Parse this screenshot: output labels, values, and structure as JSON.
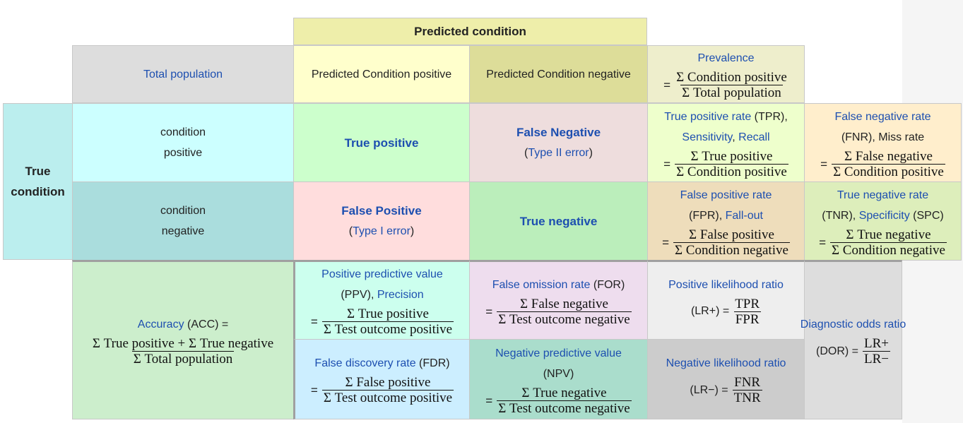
{
  "header": {
    "predicted_condition": "Predicted condition",
    "total_population": "Total population",
    "predicted_positive": "Predicted Condition positive",
    "predicted_negative": "Predicted Condition negative",
    "prevalence": {
      "label": "Prevalence",
      "eq": "=",
      "num": "Σ Condition positive",
      "den": "Σ Total population"
    }
  },
  "true_condition": {
    "line1": "True",
    "line2": "condition"
  },
  "rows": {
    "condition_positive": {
      "line1": "condition",
      "line2": "positive"
    },
    "condition_negative": {
      "line1": "condition",
      "line2": "negative"
    }
  },
  "cells": {
    "true_positive": "True positive",
    "false_negative": {
      "title": "False Negative",
      "open": "(",
      "link": "Type II error",
      "close": ")"
    },
    "false_positive": {
      "title": "False Positive",
      "open": "(",
      "link": "Type I error",
      "close": ")"
    },
    "true_negative": "True negative"
  },
  "metrics": {
    "tpr": {
      "name": "True positive rate",
      "abbr": " (TPR),",
      "alt1": "Sensitivity",
      "comma": ",",
      "alt2": " Recall",
      "eq": "=",
      "num": "Σ True positive",
      "den": "Σ Condition positive"
    },
    "fnr": {
      "name": "False negative rate",
      "abbr": "(FNR), Miss rate",
      "eq": "=",
      "num": "Σ False negative",
      "den": "Σ Condition positive"
    },
    "fpr": {
      "name": "False positive rate",
      "abbr": "(FPR), ",
      "alt": "Fall-out",
      "eq": "=",
      "num": "Σ False positive",
      "den": "Σ Condition negative"
    },
    "tnr": {
      "name": "True negative rate",
      "abbr": "(TNR), ",
      "alt": "Specificity",
      "abbr2": " (SPC)",
      "eq": "=",
      "num": "Σ True negative",
      "den": "Σ Condition negative"
    },
    "accuracy": {
      "name": "Accuracy",
      "abbr": " (ACC) =",
      "num": "Σ True positive + Σ True negative",
      "den": "Σ Total population"
    },
    "ppv": {
      "name": "Positive predictive value",
      "abbr": "(PPV), ",
      "alt": "Precision",
      "eq": "=",
      "num": "Σ True positive",
      "den": "Σ Test outcome positive"
    },
    "for": {
      "name": "False omission rate",
      "abbr": " (FOR)",
      "eq": "=",
      "num": "Σ False negative",
      "den": "Σ Test outcome negative"
    },
    "fdr": {
      "name": "False discovery rate",
      "abbr": " (FDR)",
      "eq": "=",
      "num": "Σ False positive",
      "den": "Σ Test outcome positive"
    },
    "npv": {
      "name": "Negative predictive value",
      "abbr": "(NPV)",
      "eq": "=",
      "num": "Σ True negative",
      "den": "Σ Test outcome negative"
    },
    "lr_pos": {
      "name": "Positive likelihood ratio",
      "label": "(LR+) =",
      "num": "TPR",
      "den": "FPR"
    },
    "lr_neg": {
      "name": "Negative likelihood ratio",
      "label": "(LR−) =",
      "num": "FNR",
      "den": "TNR"
    },
    "dor": {
      "name": "Diagnostic odds ratio",
      "label": "(DOR) =",
      "num": "LR+",
      "den": "LR−"
    }
  },
  "colors": {
    "header_pc": "#eeeeaa",
    "total_pop": "#dddddd",
    "pred_pos": "#ffffcc",
    "pred_neg": "#dddd99",
    "prevalence": "#eeeecc",
    "true_cond": "#bbeeee",
    "cond_pos": "#ccffff",
    "cond_neg": "#aadddd",
    "tp": "#ccffcc",
    "fn": "#eedddd",
    "fp": "#ffdddd",
    "tn": "#bbeebb",
    "tpr": "#eeffcc",
    "fnr": "#ffeecc",
    "fpr": "#eeddbb",
    "tnr": "#ddeebb",
    "acc": "#cceecc",
    "ppv": "#ccffee",
    "for": "#eeddee",
    "fdr": "#cceeff",
    "npv": "#aaddcc",
    "lr_pos": "#eeeeee",
    "lr_neg": "#cccccc",
    "dor": "#dddddd",
    "link": "#1d4fb0"
  }
}
